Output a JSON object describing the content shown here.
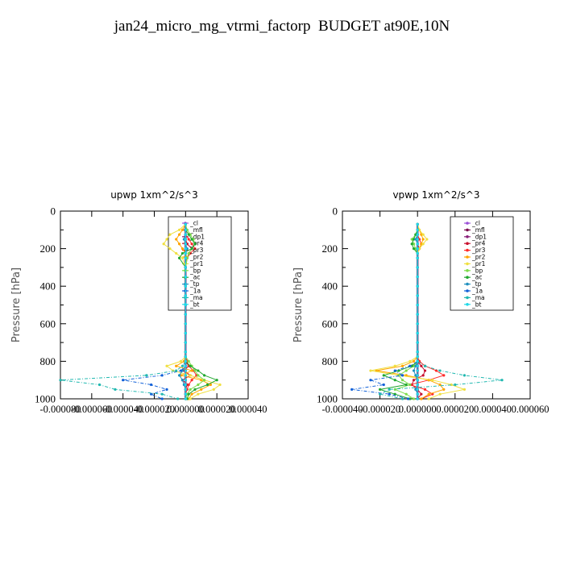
{
  "title": "jan24_micro_mg_vtrmi_factorp  BUDGET at90E,10N",
  "series_styles": [
    {
      "name": "_cl",
      "color": "#9b4fd8"
    },
    {
      "name": "_mfl",
      "color": "#7a0a4c"
    },
    {
      "name": "_dp1",
      "color": "#8a1f7a"
    },
    {
      "name": "_pr4",
      "color": "#c8102e"
    },
    {
      "name": "_pr3",
      "color": "#ff2a2a"
    },
    {
      "name": "_pr2",
      "color": "#ffa500"
    },
    {
      "name": "_pr1",
      "color": "#f0e040"
    },
    {
      "name": "_bp",
      "color": "#7ddc4a"
    },
    {
      "name": "_ac",
      "color": "#22a830"
    },
    {
      "name": "_tp",
      "color": "#1f8fbf"
    },
    {
      "name": "_1a",
      "color": "#1060d8"
    },
    {
      "name": "_ma",
      "color": "#20b8b0"
    },
    {
      "name": "_bt",
      "color": "#20d8e8"
    }
  ],
  "chart_data": [
    {
      "type": "line",
      "title": "upwp   1xm^2/s^3",
      "ylabel": "Pressure [hPa]",
      "ylim": [
        1000,
        0
      ],
      "xlim": [
        -8e-05,
        4e-05
      ],
      "xticks": [
        "-0.000080",
        "-0.000060",
        "-0.000040",
        "-0.000020",
        "0.000000",
        "0.000020",
        "0.000040"
      ],
      "yticks": [
        "0",
        "200",
        "400",
        "600",
        "800",
        "1000"
      ],
      "legend_position": "upper-right",
      "y": [
        70,
        100,
        125,
        150,
        175,
        200,
        225,
        250,
        300,
        350,
        400,
        450,
        500,
        550,
        600,
        650,
        700,
        750,
        775,
        800,
        825,
        850,
        875,
        900,
        925,
        950,
        975,
        1000
      ],
      "series": [
        {
          "name": "_cl",
          "values": [
            0,
            0,
            0,
            0,
            0,
            0,
            0,
            0,
            0,
            0,
            0,
            0,
            0,
            0,
            0,
            0,
            0,
            0,
            0,
            0,
            0,
            0,
            0,
            0,
            0,
            0,
            0,
            0
          ]
        },
        {
          "name": "_mfl",
          "values": [
            0,
            0,
            0,
            0,
            0,
            0,
            0,
            0,
            0,
            0,
            0,
            0,
            0,
            0,
            0,
            0,
            0,
            0,
            0,
            0,
            0,
            0,
            0,
            0,
            0,
            0,
            0,
            0
          ]
        },
        {
          "name": "_dp1",
          "values": [
            0,
            0,
            0,
            0,
            0,
            0,
            0,
            0,
            0,
            0,
            0,
            0,
            0,
            0,
            0,
            0,
            0,
            0,
            0,
            0,
            0,
            0,
            0,
            0,
            0,
            0,
            0,
            0
          ]
        },
        {
          "name": "_pr4",
          "values": [
            0,
            0,
            0,
            0,
            1e-06,
            4e-06,
            2e-06,
            1e-06,
            0,
            0,
            0,
            0,
            0,
            0,
            0,
            0,
            0,
            0,
            0,
            0,
            2e-06,
            -1e-06,
            3e-06,
            -2e-06,
            1e-06,
            0,
            0,
            0
          ]
        },
        {
          "name": "_pr3",
          "values": [
            0,
            0,
            0,
            2e-06,
            4e-06,
            6e-06,
            3e-06,
            1e-06,
            0,
            0,
            0,
            0,
            0,
            0,
            0,
            0,
            0,
            0,
            0,
            1e-06,
            2e-06,
            5e-06,
            7e-06,
            4e-06,
            2e-06,
            1e-06,
            0,
            0
          ]
        },
        {
          "name": "_pr2",
          "values": [
            0,
            -2e-06,
            -4e-06,
            -6e-06,
            -4e-06,
            -2e-06,
            0,
            1e-06,
            0,
            0,
            0,
            0,
            0,
            0,
            0,
            0,
            0,
            0,
            0,
            -1e-06,
            -6e-06,
            4e-06,
            -3e-06,
            1e-05,
            1.6e-05,
            1e-05,
            4e-06,
            2e-06
          ]
        },
        {
          "name": "_pr1",
          "values": [
            0,
            -4e-06,
            -1e-05,
            -1.2e-05,
            -1.4e-05,
            -1e-05,
            -6e-06,
            -2e-06,
            0,
            0,
            0,
            0,
            0,
            0,
            0,
            0,
            0,
            0,
            0,
            -3e-06,
            -1.2e-05,
            -8e-06,
            3e-06,
            1.2e-05,
            2.2e-05,
            1.8e-05,
            8e-06,
            3e-06
          ]
        },
        {
          "name": "_bp",
          "values": [
            0,
            1e-06,
            3e-06,
            5e-06,
            6e-06,
            4e-06,
            2e-06,
            1e-06,
            0,
            0,
            0,
            0,
            0,
            0,
            0,
            0,
            0,
            0,
            0,
            2e-06,
            4e-06,
            6e-06,
            8e-06,
            1.2e-05,
            8e-06,
            3e-06,
            1e-06,
            0
          ]
        },
        {
          "name": "_ac",
          "values": [
            0,
            0,
            2e-06,
            4e-06,
            6e-06,
            4e-06,
            -2e-06,
            -4e-06,
            0,
            0,
            0,
            0,
            0,
            0,
            0,
            0,
            0,
            0,
            0,
            0,
            3e-06,
            8e-06,
            1.2e-05,
            2e-05,
            1.4e-05,
            6e-06,
            2e-06,
            1e-06
          ]
        },
        {
          "name": "_tp",
          "values": [
            0,
            0,
            0,
            -1e-06,
            0,
            1e-06,
            0,
            0,
            0,
            0,
            0,
            0,
            0,
            0,
            0,
            0,
            0,
            0,
            0,
            0,
            0,
            -2e-06,
            -4e-06,
            -2e-06,
            -1e-06,
            0,
            0,
            0
          ]
        },
        {
          "name": "_1a",
          "values": [
            0,
            0,
            0,
            0,
            0,
            0,
            0,
            0,
            0,
            0,
            0,
            0,
            0,
            0,
            0,
            0,
            0,
            0,
            0,
            0,
            0,
            -3e-06,
            -1.5e-05,
            -4e-05,
            -2.2e-05,
            -1.2e-05,
            -2.2e-05,
            -1.5e-05
          ]
        },
        {
          "name": "_ma",
          "values": [
            0,
            0,
            0,
            0,
            0,
            0,
            0,
            0,
            0,
            0,
            0,
            0,
            0,
            0,
            0,
            0,
            0,
            0,
            0,
            0,
            -2e-06,
            -6e-06,
            -2.5e-05,
            -8e-05,
            -5.5e-05,
            -4.5e-05,
            -1.5e-05,
            -5e-06
          ]
        },
        {
          "name": "_bt",
          "values": [
            0,
            0,
            0,
            0,
            0,
            0,
            0,
            0,
            0,
            0,
            0,
            0,
            0,
            0,
            0,
            0,
            0,
            0,
            0,
            0,
            0,
            0,
            0,
            0,
            0,
            0,
            0,
            0
          ]
        }
      ]
    },
    {
      "type": "line",
      "title": "vpwp   1xm^2/s^3",
      "ylabel": "Pressure [hPa]",
      "ylim": [
        1000,
        0
      ],
      "xlim": [
        -4e-05,
        6e-05
      ],
      "xticks": [
        "-0.000040",
        "-0.000020",
        "0.000000",
        "0.000020",
        "0.000040",
        "0.000060"
      ],
      "yticks": [
        "0",
        "200",
        "400",
        "600",
        "800",
        "1000"
      ],
      "legend_position": "upper-right",
      "y": [
        70,
        100,
        125,
        150,
        175,
        200,
        225,
        250,
        300,
        350,
        400,
        450,
        500,
        550,
        600,
        650,
        700,
        750,
        775,
        800,
        825,
        850,
        875,
        900,
        925,
        950,
        975,
        1000
      ],
      "series": [
        {
          "name": "_cl",
          "values": [
            0,
            0,
            0,
            0,
            0,
            0,
            0,
            0,
            0,
            0,
            0,
            0,
            0,
            0,
            0,
            0,
            0,
            0,
            0,
            0,
            0,
            0,
            0,
            0,
            0,
            0,
            0,
            0
          ]
        },
        {
          "name": "_mfl",
          "values": [
            0,
            0,
            0,
            0,
            0,
            0,
            0,
            0,
            0,
            0,
            0,
            0,
            0,
            0,
            0,
            0,
            0,
            0,
            0,
            0,
            0,
            0,
            0,
            0,
            0,
            0,
            0,
            0
          ]
        },
        {
          "name": "_dp1",
          "values": [
            0,
            0,
            0,
            0,
            0,
            0,
            0,
            0,
            0,
            0,
            0,
            0,
            0,
            0,
            0,
            0,
            0,
            0,
            0,
            0,
            0,
            0,
            0,
            0,
            0,
            0,
            0,
            0
          ]
        },
        {
          "name": "_pr4",
          "values": [
            0,
            0,
            0,
            0,
            0,
            1e-06,
            0,
            0,
            0,
            0,
            0,
            0,
            0,
            0,
            0,
            0,
            0,
            0,
            0,
            0,
            2e-06,
            4e-06,
            3e-06,
            -2e-06,
            -3e-06,
            0,
            2e-06,
            0
          ]
        },
        {
          "name": "_pr3",
          "values": [
            0,
            0,
            0,
            1e-06,
            2e-06,
            1e-06,
            0,
            0,
            0,
            0,
            0,
            0,
            0,
            0,
            0,
            0,
            0,
            0,
            0,
            1e-06,
            4e-06,
            1e-05,
            1.4e-05,
            6e-06,
            -4e-06,
            4e-06,
            8e-06,
            2e-06
          ]
        },
        {
          "name": "_pr2",
          "values": [
            0,
            1e-06,
            2e-06,
            3e-06,
            2e-06,
            1e-06,
            0,
            0,
            0,
            0,
            0,
            0,
            0,
            0,
            0,
            0,
            0,
            0,
            0,
            -2e-06,
            -8e-06,
            -2.2e-05,
            -6e-06,
            6e-06,
            1.2e-05,
            1.4e-05,
            6e-06,
            2e-06
          ]
        },
        {
          "name": "_pr1",
          "values": [
            0,
            1e-06,
            3e-06,
            5e-06,
            3e-06,
            1e-06,
            0,
            0,
            0,
            0,
            0,
            0,
            0,
            0,
            0,
            0,
            0,
            0,
            0,
            -4e-06,
            -1.2e-05,
            -2.5e-05,
            -1e-05,
            8e-06,
            1.8e-05,
            2.5e-05,
            1.2e-05,
            6e-06
          ]
        },
        {
          "name": "_bp",
          "values": [
            0,
            0,
            -1e-06,
            -3e-06,
            -2e-06,
            -1e-06,
            0,
            0,
            0,
            0,
            0,
            0,
            0,
            0,
            0,
            0,
            0,
            0,
            0,
            0,
            -2e-06,
            -6e-06,
            -1e-05,
            -8e-06,
            -4e-06,
            -1.2e-05,
            -6e-06,
            -2e-06
          ]
        },
        {
          "name": "_ac",
          "values": [
            0,
            0,
            -1e-06,
            -2e-06,
            -3e-06,
            -2e-06,
            0,
            0,
            0,
            0,
            0,
            0,
            0,
            0,
            0,
            0,
            0,
            0,
            0,
            0,
            -3e-06,
            -1e-05,
            -1.8e-05,
            -1.2e-05,
            -6e-06,
            -2e-05,
            -1.2e-05,
            -4e-06
          ]
        },
        {
          "name": "_tp",
          "values": [
            0,
            0,
            0,
            -1e-06,
            0,
            0,
            0,
            0,
            0,
            0,
            0,
            0,
            0,
            0,
            0,
            0,
            0,
            0,
            0,
            0,
            -1e-06,
            -2e-06,
            -1e-06,
            0,
            0,
            -1e-06,
            0,
            0
          ]
        },
        {
          "name": "_1a",
          "values": [
            0,
            0,
            0,
            0,
            0,
            0,
            0,
            0,
            0,
            0,
            0,
            0,
            0,
            0,
            0,
            0,
            0,
            0,
            0,
            0,
            -4e-06,
            -1.2e-05,
            -8e-06,
            -2.5e-05,
            -1.8e-05,
            -3.5e-05,
            -1.5e-05,
            -5e-06
          ]
        },
        {
          "name": "_ma",
          "values": [
            0,
            0,
            0,
            0,
            0,
            0,
            0,
            0,
            0,
            0,
            0,
            0,
            0,
            0,
            0,
            0,
            0,
            0,
            0,
            0,
            4e-06,
            1.2e-05,
            2.5e-05,
            4.5e-05,
            2e-05,
            -1.5e-05,
            -2e-05,
            -8e-06
          ]
        },
        {
          "name": "_bt",
          "values": [
            0,
            0,
            0,
            0,
            0,
            0,
            0,
            0,
            0,
            0,
            0,
            0,
            0,
            0,
            0,
            0,
            0,
            0,
            0,
            0,
            0,
            0,
            0,
            0,
            0,
            0,
            0,
            0
          ]
        }
      ]
    }
  ]
}
